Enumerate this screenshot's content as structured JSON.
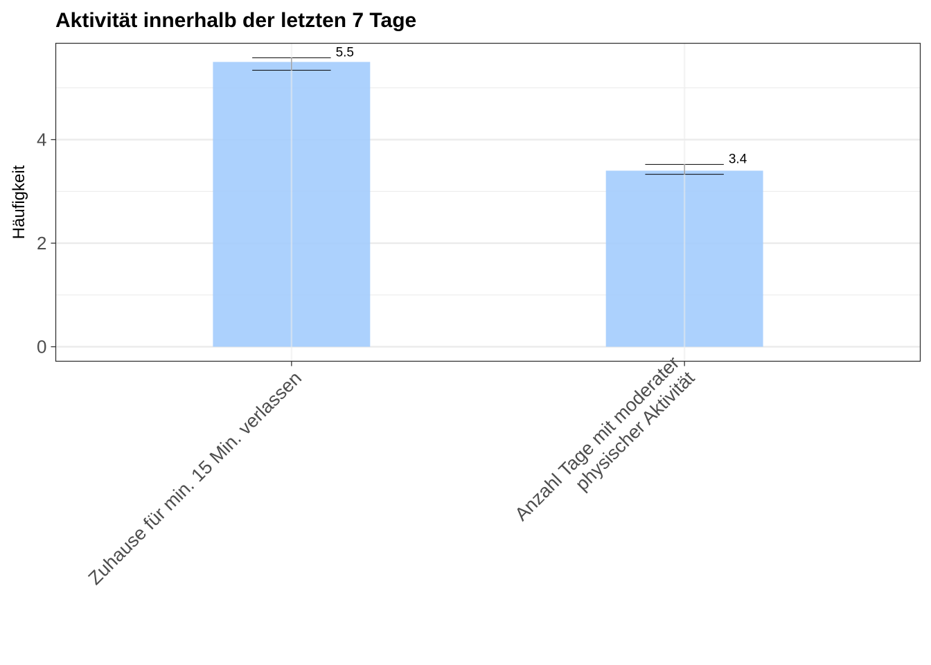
{
  "chart_data": {
    "type": "bar",
    "title": "Aktivität innerhalb der letzten 7 Tage",
    "xlabel": "",
    "ylabel": "Häufigkeit",
    "categories": [
      [
        "Zuhause für min. 15 Min. verlassen"
      ],
      [
        "Anzahl Tage mit moderater",
        "physischer Aktivität"
      ]
    ],
    "values": [
      5.5,
      3.4
    ],
    "data_labels": [
      "5.5",
      "3.4"
    ],
    "error_bars": [
      {
        "lower": 5.34,
        "upper": 5.58
      },
      {
        "lower": 3.33,
        "upper": 3.52
      }
    ],
    "ylim": [
      -0.28,
      5.86
    ],
    "yticks": [
      0,
      2,
      4
    ],
    "ytick_labels": [
      "0",
      "2",
      "4"
    ],
    "grid": true,
    "colors": {
      "bar": "#a0cbfd",
      "grid": "#ebebeb",
      "panel_border": "#333333",
      "error_bar": "#000000"
    }
  }
}
